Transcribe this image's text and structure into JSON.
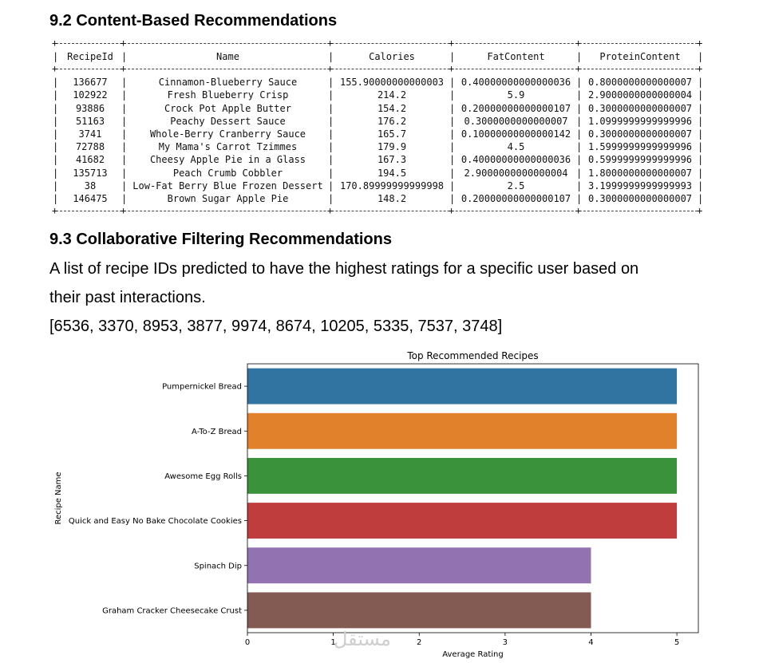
{
  "section_content": {
    "heading": "9.2 Content-Based Recommendations",
    "table": {
      "columns": [
        "RecipeId",
        "Name",
        "Calories",
        "FatContent",
        "ProteinContent"
      ],
      "rows": [
        [
          "136677",
          "Cinnamon-Blueberry Sauce",
          "155.90000000000003",
          "0.40000000000000036",
          "0.8000000000000007"
        ],
        [
          "102922",
          "Fresh Blueberry Crisp",
          "214.2",
          "5.9",
          "2.9000000000000004"
        ],
        [
          "93886",
          "Crock Pot Apple Butter",
          "154.2",
          "0.20000000000000107",
          "0.3000000000000007"
        ],
        [
          "51163",
          "Peachy Dessert Sauce",
          "176.2",
          "0.3000000000000007",
          "1.0999999999999996"
        ],
        [
          "3741",
          "Whole-Berry Cranberry Sauce",
          "165.7",
          "0.10000000000000142",
          "0.3000000000000007"
        ],
        [
          "72788",
          "My Mama's Carrot Tzimmes",
          "179.9",
          "4.5",
          "1.5999999999999996"
        ],
        [
          "41682",
          "Cheesy Apple Pie in a Glass",
          "167.3",
          "0.40000000000000036",
          "0.5999999999999996"
        ],
        [
          "135713",
          "Peach Crumb Cobbler",
          "194.5",
          "2.9000000000000004",
          "1.8000000000000007"
        ],
        [
          "38",
          "Low-Fat Berry Blue Frozen Dessert",
          "170.89999999999998",
          "2.5",
          "3.1999999999999993"
        ],
        [
          "146475",
          "Brown Sugar Apple Pie",
          "148.2",
          "0.20000000000000107",
          "0.3000000000000007"
        ]
      ]
    }
  },
  "section_collab": {
    "heading": "9.3 Collaborative Filtering Recommendations",
    "para_line1": "A list of recipe IDs predicted to have the highest ratings for a specific user based on",
    "para_line2": "their past interactions.",
    "id_list": "[6536, 3370, 8953, 3877, 9974, 8674, 10205, 5335, 7537, 3748]"
  },
  "watermark": "مستقل",
  "chart_data": {
    "type": "bar",
    "orientation": "horizontal",
    "title": "Top Recommended Recipes",
    "xlabel": "Average Rating",
    "ylabel": "Recipe Name",
    "categories": [
      "Pumpernickel Bread",
      "A-To-Z Bread",
      "Awesome Egg Rolls",
      "Quick and Easy No Bake Chocolate Cookies",
      "Spinach Dip",
      "Graham Cracker Cheesecake Crust"
    ],
    "values": [
      5,
      5,
      5,
      5,
      4,
      4
    ],
    "colors": [
      "#3274a1",
      "#e1812c",
      "#3a923a",
      "#c03d3e",
      "#9372b2",
      "#845b53"
    ],
    "xlim": [
      0,
      5.25
    ],
    "xticks": [
      0,
      1,
      2,
      3,
      4,
      5
    ],
    "grid": false
  }
}
